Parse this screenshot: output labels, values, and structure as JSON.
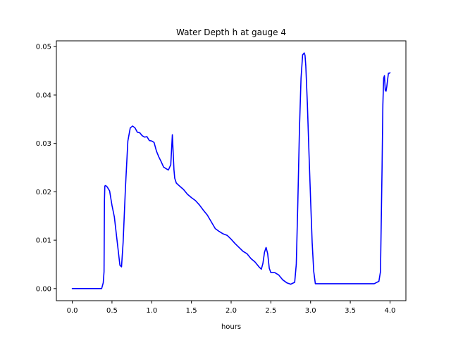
{
  "chart_data": {
    "type": "line",
    "title": "Water Depth h at gauge 4",
    "xlabel": "hours",
    "ylabel": "",
    "xlim": [
      -0.2,
      4.2
    ],
    "ylim": [
      -0.0025,
      0.0512
    ],
    "xticks": [
      0.0,
      0.5,
      1.0,
      1.5,
      2.0,
      2.5,
      3.0,
      3.5,
      4.0
    ],
    "xtick_labels": [
      "0.0",
      "0.5",
      "1.0",
      "1.5",
      "2.0",
      "2.5",
      "3.0",
      "3.5",
      "4.0"
    ],
    "yticks": [
      0.0,
      0.01,
      0.02,
      0.03,
      0.04,
      0.05
    ],
    "ytick_labels": [
      "0.00",
      "0.01",
      "0.02",
      "0.03",
      "0.04",
      "0.05"
    ],
    "grid": false,
    "legend": "none",
    "series": [
      {
        "color": "#0000ff",
        "x": [
          0.0,
          0.1,
          0.2,
          0.3,
          0.37,
          0.39,
          0.4,
          0.405,
          0.41,
          0.42,
          0.44,
          0.47,
          0.5,
          0.53,
          0.56,
          0.6,
          0.62,
          0.64,
          0.67,
          0.7,
          0.73,
          0.76,
          0.79,
          0.82,
          0.85,
          0.88,
          0.91,
          0.94,
          0.97,
          1.0,
          1.03,
          1.06,
          1.09,
          1.12,
          1.15,
          1.18,
          1.21,
          1.24,
          1.26,
          1.28,
          1.29,
          1.31,
          1.35,
          1.4,
          1.45,
          1.5,
          1.55,
          1.6,
          1.65,
          1.7,
          1.75,
          1.8,
          1.85,
          1.9,
          1.95,
          2.0,
          2.05,
          2.1,
          2.15,
          2.2,
          2.25,
          2.3,
          2.35,
          2.38,
          2.4,
          2.42,
          2.44,
          2.46,
          2.48,
          2.5,
          2.55,
          2.6,
          2.65,
          2.7,
          2.75,
          2.8,
          2.82,
          2.84,
          2.86,
          2.88,
          2.9,
          2.92,
          2.93,
          2.94,
          2.96,
          2.98,
          3.0,
          3.02,
          3.04,
          3.06,
          3.08,
          3.1,
          3.2,
          3.3,
          3.4,
          3.5,
          3.6,
          3.7,
          3.8,
          3.86,
          3.88,
          3.9,
          3.91,
          3.92,
          3.93,
          3.94,
          3.95,
          3.96,
          3.97,
          3.98,
          3.99,
          4.0
        ],
        "y": [
          0.0,
          0.0,
          0.0,
          0.0,
          0.0,
          0.0012,
          0.0035,
          0.018,
          0.0212,
          0.0213,
          0.021,
          0.0202,
          0.0172,
          0.0148,
          0.0105,
          0.0048,
          0.0045,
          0.0095,
          0.021,
          0.0305,
          0.0332,
          0.0336,
          0.0332,
          0.0323,
          0.0322,
          0.0316,
          0.0313,
          0.0314,
          0.0306,
          0.0305,
          0.0302,
          0.0284,
          0.0272,
          0.0262,
          0.0251,
          0.0248,
          0.0245,
          0.0256,
          0.0318,
          0.0246,
          0.0228,
          0.0218,
          0.0212,
          0.0205,
          0.0195,
          0.0188,
          0.0182,
          0.0173,
          0.0162,
          0.0152,
          0.0138,
          0.0124,
          0.0118,
          0.0113,
          0.011,
          0.0102,
          0.0093,
          0.0085,
          0.0077,
          0.0072,
          0.0062,
          0.0055,
          0.0045,
          0.004,
          0.0052,
          0.0075,
          0.0085,
          0.0072,
          0.0042,
          0.0033,
          0.0033,
          0.0028,
          0.0018,
          0.0012,
          0.0009,
          0.0013,
          0.005,
          0.018,
          0.033,
          0.0435,
          0.0483,
          0.0487,
          0.0482,
          0.046,
          0.038,
          0.028,
          0.0185,
          0.0095,
          0.0035,
          0.001,
          0.001,
          0.001,
          0.001,
          0.001,
          0.001,
          0.001,
          0.001,
          0.001,
          0.001,
          0.0015,
          0.0035,
          0.025,
          0.038,
          0.0435,
          0.044,
          0.041,
          0.0408,
          0.0418,
          0.0432,
          0.0445,
          0.0445,
          0.0446
        ]
      }
    ]
  }
}
